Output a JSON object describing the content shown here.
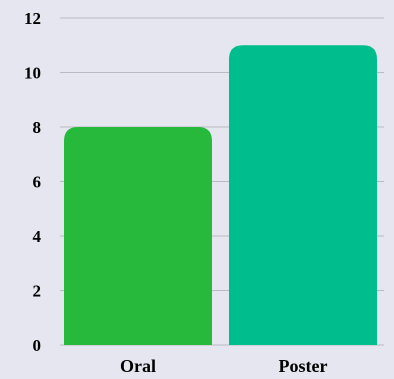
{
  "chart_data": {
    "type": "bar",
    "title": "",
    "xlabel": "",
    "ylabel": "",
    "categories": [
      "Oral",
      "Poster"
    ],
    "values": [
      8,
      11
    ],
    "colors": [
      "#27b93c",
      "#00bd8d"
    ],
    "ylim": [
      0,
      12
    ],
    "yticks": [
      0,
      2,
      4,
      6,
      8,
      10,
      12
    ],
    "grid": true,
    "background": "#e5e6ef"
  }
}
